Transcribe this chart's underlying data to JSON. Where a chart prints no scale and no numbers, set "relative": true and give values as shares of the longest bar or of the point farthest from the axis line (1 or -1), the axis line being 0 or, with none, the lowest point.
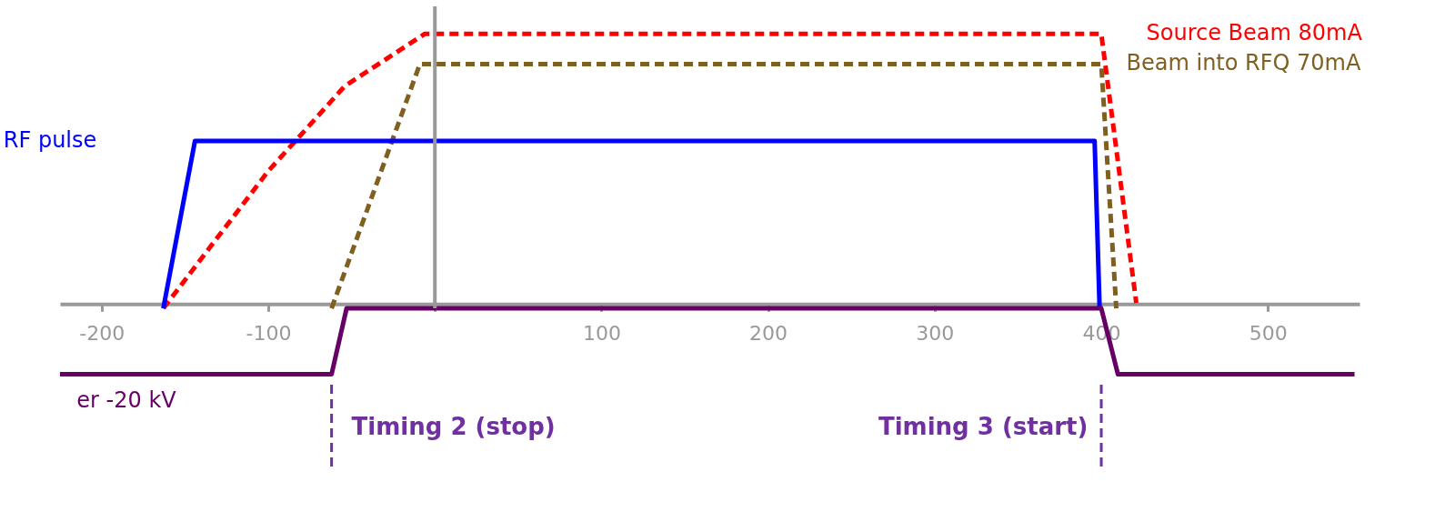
{
  "chart_data": {
    "type": "line",
    "relative": true,
    "legend": false,
    "grid": false,
    "xlim": [
      -225,
      555
    ],
    "xticks": [
      {
        "value": -200,
        "label": "-200"
      },
      {
        "value": -100,
        "label": "-100"
      },
      {
        "value": 0,
        "label": null
      },
      100,
      200,
      300,
      400,
      500
    ],
    "series": [
      {
        "name": "Source Beam 80mA",
        "color": "#ff0000",
        "line_style": "dashed",
        "x": [
          -163,
          -100,
          -54,
          -6,
          400,
          421
        ],
        "values": [
          0,
          0.5,
          0.81,
          1,
          1,
          0.02
        ]
      },
      {
        "name": "Beam into RFQ 70mA",
        "color": "#7f6020",
        "line_style": "dashed",
        "x": [
          -62,
          -9,
          400,
          409
        ],
        "values": [
          0,
          0.89,
          0.89,
          0
        ]
      },
      {
        "name": "RF pulse",
        "color": "#0000ff",
        "line_style": "solid",
        "x": [
          -163,
          -144,
          396,
          399
        ],
        "values": [
          0,
          0.61,
          0.61,
          0
        ]
      },
      {
        "name": "er -20 kV",
        "color": "#660066",
        "line_style": "solid",
        "x": [
          -225,
          -62,
          -53,
          400,
          410,
          552
        ],
        "values": [
          -0.24,
          -0.24,
          0,
          0,
          -0.24,
          -0.24
        ]
      }
    ],
    "ref_lines": [
      {
        "axis": "x",
        "value": 0,
        "color": "#999999",
        "line_style": "solid"
      },
      {
        "axis": "x",
        "value": -62,
        "label": "Timing 2 (stop)",
        "color": "#7030a0",
        "line_style": "dashed"
      },
      {
        "axis": "x",
        "value": 400,
        "label": "Timing 3 (start)",
        "color": "#7030a0",
        "line_style": "dashed"
      }
    ]
  }
}
